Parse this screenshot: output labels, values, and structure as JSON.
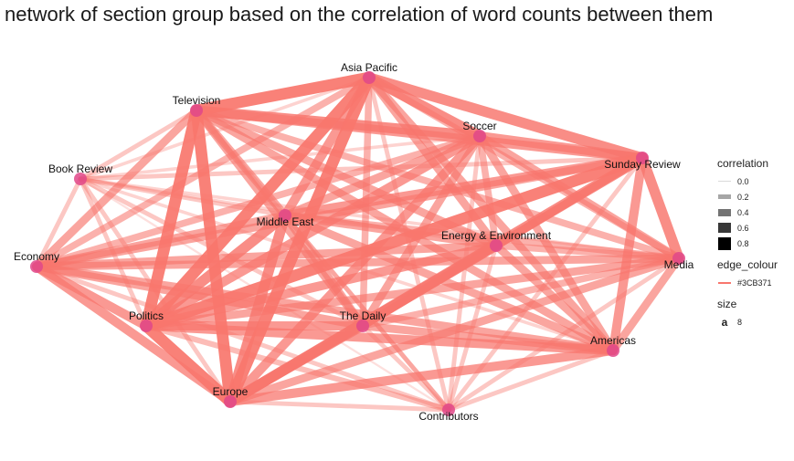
{
  "chart_data": {
    "type": "network",
    "title": "network of section group based on the correlation of word counts between them",
    "nodes": [
      {
        "name": "Asia Pacific"
      },
      {
        "name": "Television"
      },
      {
        "name": "Soccer"
      },
      {
        "name": "Sunday Review"
      },
      {
        "name": "Book Review"
      },
      {
        "name": "Middle East"
      },
      {
        "name": "Energy & Environment"
      },
      {
        "name": "Economy"
      },
      {
        "name": "Media"
      },
      {
        "name": "Politics"
      },
      {
        "name": "The Daily"
      },
      {
        "name": "Americas"
      },
      {
        "name": "Europe"
      },
      {
        "name": "Contributors"
      }
    ],
    "edges": [
      [
        "Asia Pacific",
        "Television",
        0.9
      ],
      [
        "Asia Pacific",
        "Soccer",
        0.8
      ],
      [
        "Asia Pacific",
        "Sunday Review",
        0.8
      ],
      [
        "Asia Pacific",
        "Book Review",
        0.2
      ],
      [
        "Asia Pacific",
        "Middle East",
        0.7
      ],
      [
        "Asia Pacific",
        "Energy & Environment",
        0.6
      ],
      [
        "Asia Pacific",
        "Economy",
        0.5
      ],
      [
        "Asia Pacific",
        "Media",
        0.5
      ],
      [
        "Asia Pacific",
        "Politics",
        0.9
      ],
      [
        "Asia Pacific",
        "The Daily",
        0.5
      ],
      [
        "Asia Pacific",
        "Americas",
        0.6
      ],
      [
        "Asia Pacific",
        "Europe",
        0.9
      ],
      [
        "Asia Pacific",
        "Contributors",
        0.3
      ],
      [
        "Television",
        "Soccer",
        0.8
      ],
      [
        "Television",
        "Sunday Review",
        0.7
      ],
      [
        "Television",
        "Book Review",
        0.3
      ],
      [
        "Television",
        "Middle East",
        0.6
      ],
      [
        "Television",
        "Energy & Environment",
        0.6
      ],
      [
        "Television",
        "Economy",
        0.6
      ],
      [
        "Television",
        "Media",
        0.5
      ],
      [
        "Television",
        "Politics",
        0.9
      ],
      [
        "Television",
        "The Daily",
        0.6
      ],
      [
        "Television",
        "Americas",
        0.6
      ],
      [
        "Television",
        "Europe",
        0.9
      ],
      [
        "Television",
        "Contributors",
        0.3
      ],
      [
        "Soccer",
        "Sunday Review",
        0.7
      ],
      [
        "Soccer",
        "Book Review",
        0.2
      ],
      [
        "Soccer",
        "Middle East",
        0.6
      ],
      [
        "Soccer",
        "Energy & Environment",
        0.5
      ],
      [
        "Soccer",
        "Economy",
        0.5
      ],
      [
        "Soccer",
        "Media",
        0.6
      ],
      [
        "Soccer",
        "Politics",
        0.7
      ],
      [
        "Soccer",
        "The Daily",
        0.6
      ],
      [
        "Soccer",
        "Americas",
        0.6
      ],
      [
        "Soccer",
        "Europe",
        0.7
      ],
      [
        "Soccer",
        "Contributors",
        0.3
      ],
      [
        "Sunday Review",
        "Book Review",
        0.3
      ],
      [
        "Sunday Review",
        "Middle East",
        0.7
      ],
      [
        "Sunday Review",
        "Energy & Environment",
        0.6
      ],
      [
        "Sunday Review",
        "Economy",
        0.6
      ],
      [
        "Sunday Review",
        "Media",
        0.8
      ],
      [
        "Sunday Review",
        "Politics",
        0.9
      ],
      [
        "Sunday Review",
        "The Daily",
        0.6
      ],
      [
        "Sunday Review",
        "Americas",
        0.7
      ],
      [
        "Sunday Review",
        "Europe",
        0.8
      ],
      [
        "Sunday Review",
        "Contributors",
        0.3
      ],
      [
        "Book Review",
        "Middle East",
        0.3
      ],
      [
        "Book Review",
        "Energy & Environment",
        0.2
      ],
      [
        "Book Review",
        "Economy",
        0.3
      ],
      [
        "Book Review",
        "Media",
        0.2
      ],
      [
        "Book Review",
        "Politics",
        0.3
      ],
      [
        "Book Review",
        "The Daily",
        0.3
      ],
      [
        "Book Review",
        "Americas",
        0.2
      ],
      [
        "Book Review",
        "Europe",
        0.3
      ],
      [
        "Book Review",
        "Contributors",
        0.1
      ],
      [
        "Middle East",
        "Energy & Environment",
        0.6
      ],
      [
        "Middle East",
        "Economy",
        0.6
      ],
      [
        "Middle East",
        "Media",
        0.5
      ],
      [
        "Middle East",
        "Politics",
        0.8
      ],
      [
        "Middle East",
        "The Daily",
        0.6
      ],
      [
        "Middle East",
        "Americas",
        0.6
      ],
      [
        "Middle East",
        "Europe",
        0.8
      ],
      [
        "Middle East",
        "Contributors",
        0.3
      ],
      [
        "Energy & Environment",
        "Economy",
        0.6
      ],
      [
        "Energy & Environment",
        "Media",
        0.5
      ],
      [
        "Energy & Environment",
        "Politics",
        0.7
      ],
      [
        "Energy & Environment",
        "The Daily",
        0.6
      ],
      [
        "Energy & Environment",
        "Americas",
        0.6
      ],
      [
        "Energy & Environment",
        "Europe",
        0.8
      ],
      [
        "Energy & Environment",
        "Contributors",
        0.3
      ],
      [
        "Economy",
        "Media",
        0.6
      ],
      [
        "Economy",
        "Politics",
        0.7
      ],
      [
        "Economy",
        "The Daily",
        0.6
      ],
      [
        "Economy",
        "Americas",
        0.6
      ],
      [
        "Economy",
        "Europe",
        0.7
      ],
      [
        "Economy",
        "Contributors",
        0.3
      ],
      [
        "Media",
        "Politics",
        0.6
      ],
      [
        "Media",
        "The Daily",
        0.5
      ],
      [
        "Media",
        "Americas",
        0.6
      ],
      [
        "Media",
        "Europe",
        0.6
      ],
      [
        "Media",
        "Contributors",
        0.3
      ],
      [
        "Politics",
        "The Daily",
        0.7
      ],
      [
        "Politics",
        "Americas",
        0.7
      ],
      [
        "Politics",
        "Europe",
        0.9
      ],
      [
        "Politics",
        "Contributors",
        0.4
      ],
      [
        "The Daily",
        "Americas",
        0.6
      ],
      [
        "The Daily",
        "Europe",
        0.7
      ],
      [
        "The Daily",
        "Contributors",
        0.3
      ],
      [
        "Americas",
        "Europe",
        0.7
      ],
      [
        "Americas",
        "Contributors",
        0.3
      ],
      [
        "Europe",
        "Contributors",
        0.3
      ]
    ],
    "edge_color": "#F8766D",
    "node_color": "#E0488A",
    "legend": {
      "correlation": {
        "title": "correlation",
        "labels": [
          "0.0",
          "0.2",
          "0.4",
          "0.6",
          "0.8"
        ]
      },
      "edge_colour": {
        "title": "edge_colour",
        "label": "#3CB371"
      },
      "size": {
        "title": "size",
        "key": "a",
        "label": "8"
      }
    }
  }
}
